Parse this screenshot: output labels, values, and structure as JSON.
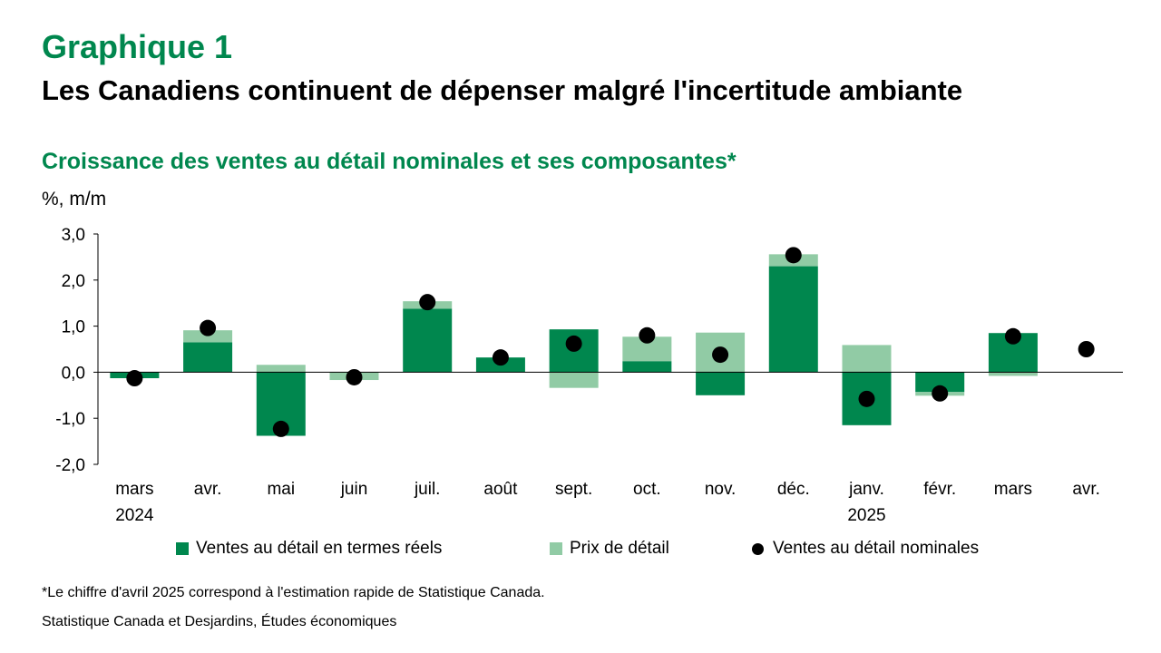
{
  "header": {
    "label": "Graphique 1",
    "title": "Les Canadiens continuent de dépenser malgré l'incertitude ambiante"
  },
  "chart_data": {
    "type": "bar",
    "title": "Croissance des ventes au détail nominales et ses composantes*",
    "ylabel": "%, m/m",
    "ylim": [
      -2.0,
      3.0
    ],
    "yticks": [
      "-2,0",
      "-1,0",
      "0,0",
      "1,0",
      "2,0",
      "3,0"
    ],
    "categories": [
      "mars",
      "avr.",
      "mai",
      "juin",
      "juil.",
      "août",
      "sept.",
      "oct.",
      "nov.",
      "déc.",
      "janv.",
      "févr.",
      "mars",
      "avr."
    ],
    "year_labels": [
      {
        "category_index": 0,
        "label": "2024"
      },
      {
        "category_index": 10,
        "label": "2025"
      }
    ],
    "stacked": true,
    "grid": false,
    "legend_position": "bottom",
    "series": [
      {
        "name": "Ventes au détail en termes réels",
        "kind": "bar",
        "color": "#00874E",
        "values": [
          -0.13,
          0.65,
          -1.38,
          0.0,
          1.38,
          0.32,
          0.93,
          0.24,
          -0.5,
          2.3,
          -1.15,
          -0.43,
          0.85,
          null
        ]
      },
      {
        "name": "Prix de détail",
        "kind": "bar",
        "color": "#91CBA5",
        "values": [
          0.0,
          0.26,
          0.16,
          -0.17,
          0.16,
          0.0,
          -0.34,
          0.53,
          0.86,
          0.26,
          0.59,
          -0.08,
          -0.08,
          null
        ]
      },
      {
        "name": "Ventes au détail nominales",
        "kind": "dot",
        "color": "#000000",
        "values": [
          -0.13,
          0.96,
          -1.23,
          -0.11,
          1.52,
          0.32,
          0.62,
          0.8,
          0.38,
          2.54,
          -0.58,
          -0.46,
          0.78,
          0.5
        ]
      }
    ]
  },
  "footnote": "*Le chiffre d'avril 2025 correspond à l'estimation rapide de Statistique Canada.",
  "source": "Statistique Canada et Desjardins, Études économiques"
}
